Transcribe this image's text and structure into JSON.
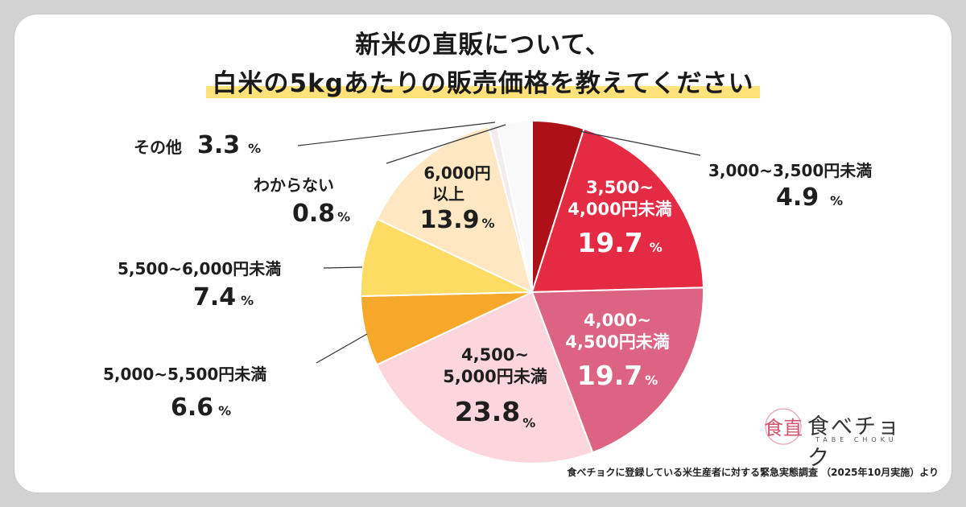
{
  "title": {
    "line1": "新米の直販について、",
    "line2": "白米の5kgあたりの販売価格を教えてください"
  },
  "chart_data": {
    "type": "pie",
    "start": "12 o'clock",
    "direction": "clockwise",
    "slices": [
      {
        "label": "3,000~3,500円未満",
        "value": 4.9,
        "color": "#ad1017"
      },
      {
        "label": "3,500~4,000円未満",
        "value": 19.7,
        "color": "#e52b44"
      },
      {
        "label": "4,000~4,500円未満",
        "value": 19.7,
        "color": "#dd6383"
      },
      {
        "label": "4,500~5,000円未満",
        "value": 23.8,
        "color": "#fdd6dd"
      },
      {
        "label": "5,000~5,500円未満",
        "value": 6.6,
        "color": "#f5a82a"
      },
      {
        "label": "5,500~6,000円未満",
        "value": 7.4,
        "color": "#fddc63"
      },
      {
        "label": "6,000円以上",
        "value": 13.9,
        "color": "#fee7c2"
      },
      {
        "label": "わからない",
        "value": 0.8,
        "color": "#f2ecec"
      },
      {
        "label": "その他",
        "value": 3.3,
        "color": "#faf9f9"
      }
    ]
  },
  "labels": {
    "l3000": {
      "name": "3,000~3,500円未満",
      "value": "4.9"
    },
    "l3500": {
      "line1": "3,500~",
      "line2": "4,000円未満",
      "value": "19.7"
    },
    "l4000": {
      "line1": "4,000~",
      "line2": "4,500円未満",
      "value": "19.7"
    },
    "l4500": {
      "line1": "4,500~",
      "line2": "5,000円未満",
      "value": "23.8"
    },
    "l5000": {
      "name": "5,000~5,500円未満",
      "value": "6.6"
    },
    "l5500": {
      "name": "5,500~6,000円未満",
      "value": "7.4"
    },
    "l6000": {
      "line1": "6,000円",
      "line2": "以上",
      "value": "13.9"
    },
    "unknown": {
      "name": "わからない",
      "value": "0.8"
    },
    "other": {
      "name": "その他",
      "value": "3.3"
    },
    "percent": "%"
  },
  "logo": {
    "text": "食べチョク",
    "sub": "TABE CHOKU",
    "mark": "食直"
  },
  "source": "食べチョクに登録している米生産者に対する緊急実態調査 （2025年10月実施）より"
}
